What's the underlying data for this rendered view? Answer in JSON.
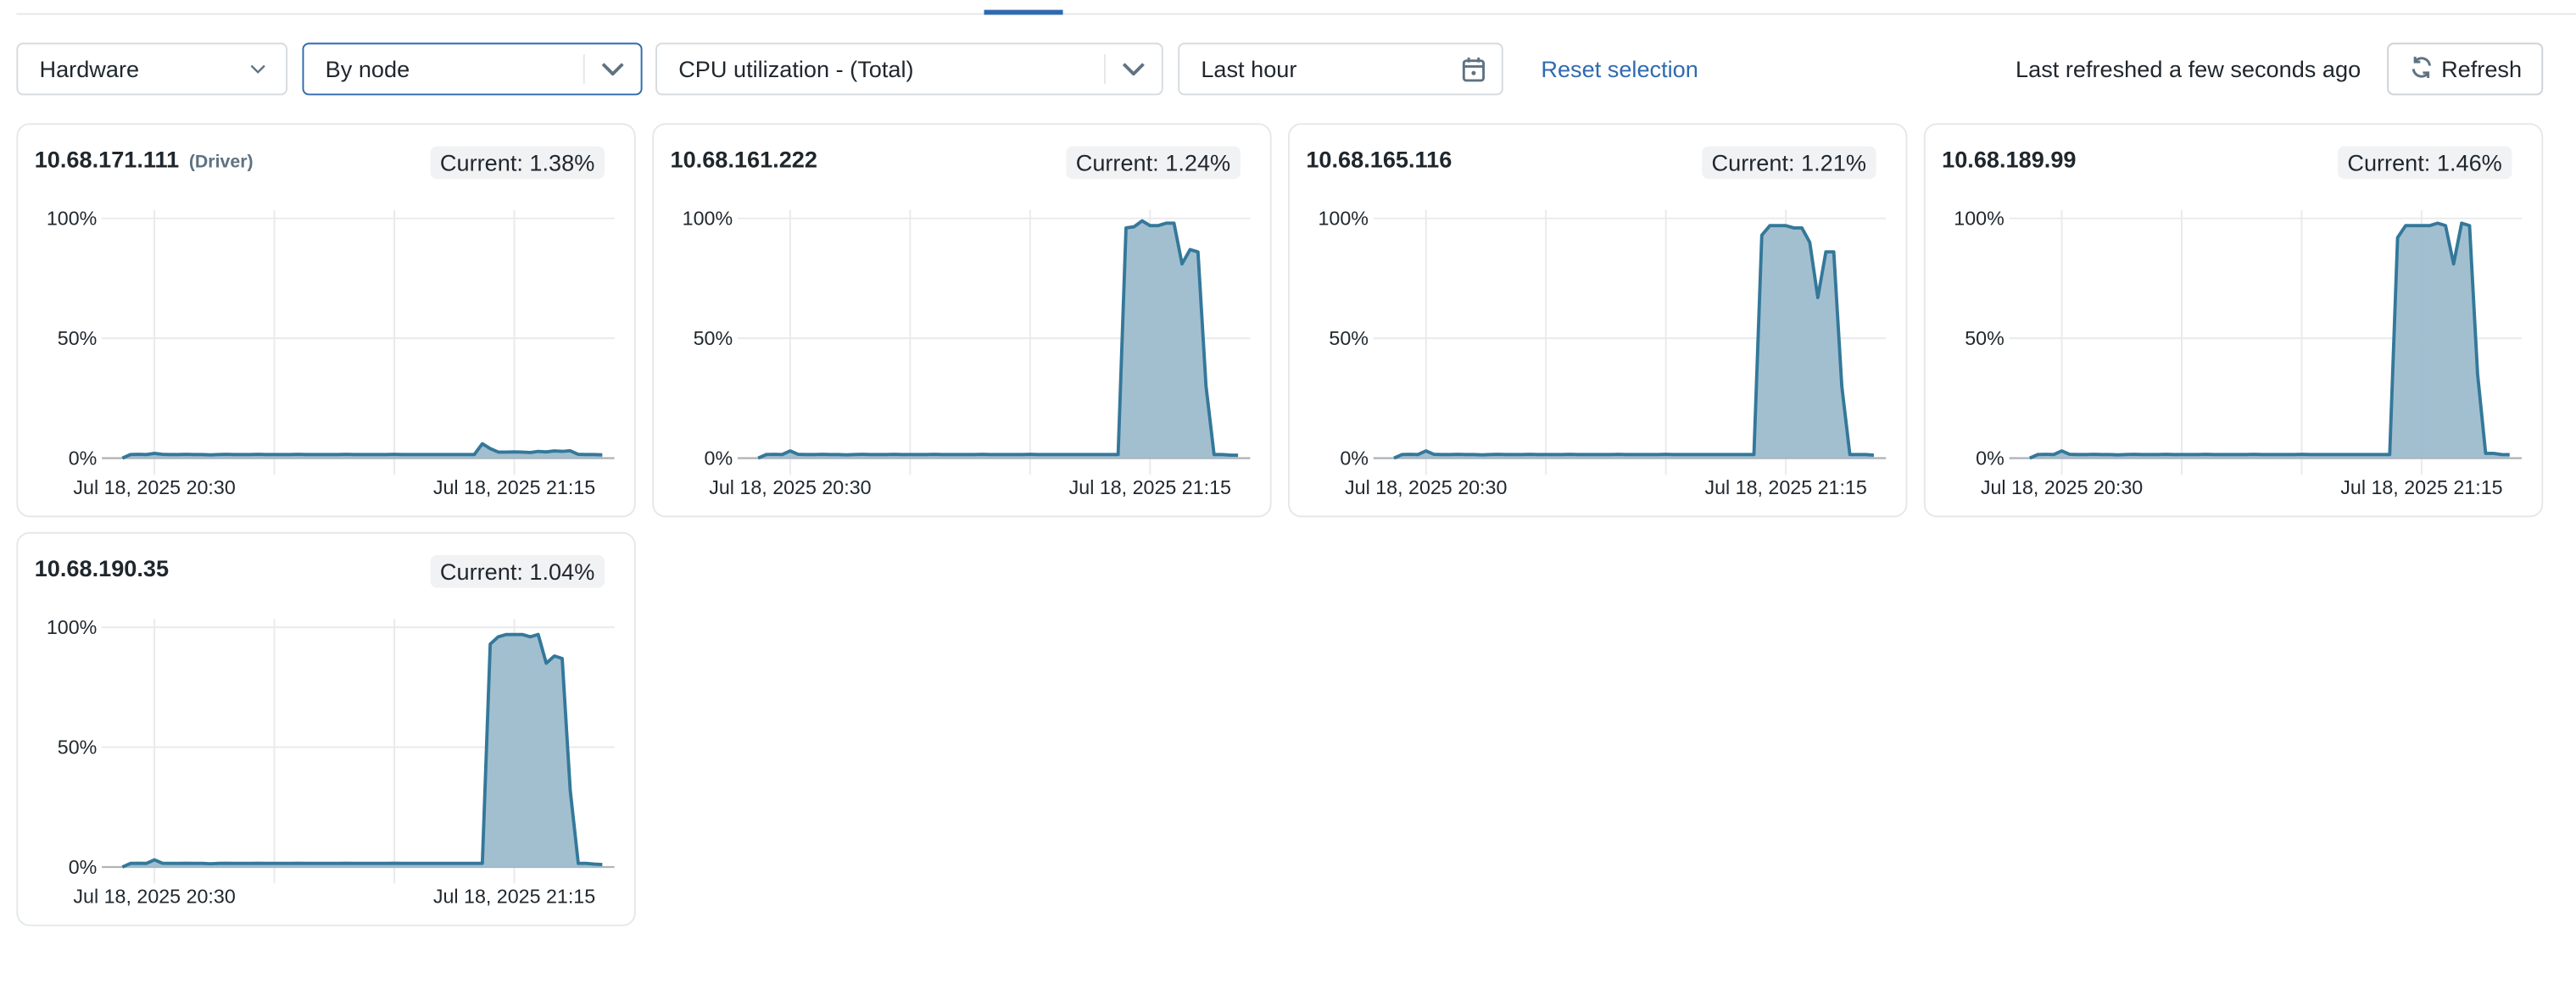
{
  "filters": {
    "category": "Hardware",
    "grouping": "By node",
    "metric": "CPU utilization - (Total)",
    "time_range": "Last hour",
    "reset_label": "Reset selection",
    "last_refreshed": "Last refreshed a few seconds ago",
    "refresh_label": "Refresh"
  },
  "colors": {
    "accent": "#2f6ab0",
    "line": "#34789a",
    "fill": "#9dbccd"
  },
  "cards": [
    {
      "node": "10.68.171.111",
      "tag": "(Driver)",
      "current": "Current: 1.38%"
    },
    {
      "node": "10.68.161.222",
      "current": "Current: 1.24%"
    },
    {
      "node": "10.68.165.116",
      "current": "Current: 1.21%"
    },
    {
      "node": "10.68.189.99",
      "current": "Current: 1.46%"
    },
    {
      "node": "10.68.190.35",
      "current": "Current: 1.04%"
    }
  ],
  "chart_data": [
    {
      "type": "area",
      "series_node": "10.68.171.111",
      "yticks": [
        "0%",
        "50%",
        "100%"
      ],
      "ylim": [
        0,
        100
      ],
      "xticks": [
        "Jul 18, 2025 20:30",
        "Jul 18, 2025 21:15"
      ],
      "grid": true,
      "values": [
        0,
        1.5,
        1.6,
        1.5,
        2,
        1.6,
        1.5,
        1.5,
        1.6,
        1.5,
        1.5,
        1.4,
        1.5,
        1.6,
        1.5,
        1.5,
        1.5,
        1.6,
        1.5,
        1.5,
        1.5,
        1.5,
        1.6,
        1.5,
        1.5,
        1.5,
        1.5,
        1.5,
        1.6,
        1.5,
        1.5,
        1.5,
        1.5,
        1.5,
        1.6,
        1.5,
        1.5,
        1.5,
        1.5,
        1.5,
        1.5,
        1.5,
        1.5,
        1.5,
        1.5,
        6,
        4,
        2.5,
        2.5,
        2.6,
        2.5,
        2.3,
        2.8,
        2.6,
        3,
        2.8,
        3.1,
        1.6,
        1.5,
        1.5,
        1.38
      ]
    },
    {
      "type": "area",
      "series_node": "10.68.161.222",
      "yticks": [
        "0%",
        "50%",
        "100%"
      ],
      "ylim": [
        0,
        100
      ],
      "xticks": [
        "Jul 18, 2025 20:30",
        "Jul 18, 2025 21:15"
      ],
      "grid": true,
      "values": [
        0,
        1.5,
        1.6,
        1.5,
        3,
        1.6,
        1.5,
        1.5,
        1.6,
        1.5,
        1.5,
        1.4,
        1.5,
        1.6,
        1.5,
        1.5,
        1.5,
        1.6,
        1.5,
        1.5,
        1.5,
        1.5,
        1.6,
        1.5,
        1.5,
        1.5,
        1.5,
        1.5,
        1.6,
        1.5,
        1.5,
        1.5,
        1.5,
        1.5,
        1.6,
        1.5,
        1.5,
        1.5,
        1.5,
        1.5,
        1.5,
        1.5,
        1.5,
        1.5,
        1.5,
        1.5,
        96,
        96.5,
        99,
        97,
        97,
        98,
        98,
        81,
        87,
        86,
        30,
        1.5,
        1.5,
        1.3,
        1.24
      ]
    },
    {
      "type": "area",
      "series_node": "10.68.165.116",
      "yticks": [
        "0%",
        "50%",
        "100%"
      ],
      "ylim": [
        0,
        100
      ],
      "xticks": [
        "Jul 18, 2025 20:30",
        "Jul 18, 2025 21:15"
      ],
      "grid": true,
      "values": [
        0,
        1.5,
        1.6,
        1.5,
        3,
        1.6,
        1.5,
        1.5,
        1.6,
        1.5,
        1.5,
        1.4,
        1.5,
        1.6,
        1.5,
        1.5,
        1.5,
        1.6,
        1.5,
        1.5,
        1.5,
        1.5,
        1.6,
        1.5,
        1.5,
        1.5,
        1.5,
        1.5,
        1.6,
        1.5,
        1.5,
        1.5,
        1.5,
        1.5,
        1.6,
        1.5,
        1.5,
        1.5,
        1.5,
        1.5,
        1.5,
        1.5,
        1.5,
        1.5,
        1.5,
        1.5,
        93,
        97,
        97,
        97,
        96,
        96,
        90,
        67,
        86,
        86,
        30,
        1.5,
        1.5,
        1.5,
        1.21
      ]
    },
    {
      "type": "area",
      "series_node": "10.68.189.99",
      "yticks": [
        "0%",
        "50%",
        "100%"
      ],
      "ylim": [
        0,
        100
      ],
      "xticks": [
        "Jul 18, 2025 20:30",
        "Jul 18, 2025 21:15"
      ],
      "grid": true,
      "values": [
        0,
        1.5,
        1.6,
        1.5,
        3,
        1.6,
        1.5,
        1.5,
        1.6,
        1.5,
        1.5,
        1.4,
        1.5,
        1.6,
        1.5,
        1.5,
        1.5,
        1.6,
        1.5,
        1.5,
        1.5,
        1.5,
        1.6,
        1.5,
        1.5,
        1.5,
        1.5,
        1.5,
        1.6,
        1.5,
        1.5,
        1.5,
        1.5,
        1.5,
        1.6,
        1.5,
        1.5,
        1.5,
        1.5,
        1.5,
        1.5,
        1.5,
        1.5,
        1.5,
        1.5,
        1.5,
        92,
        97,
        97,
        97,
        97,
        98,
        97,
        81,
        98,
        97,
        35,
        2,
        2,
        1.5,
        1.46
      ]
    },
    {
      "type": "area",
      "series_node": "10.68.190.35",
      "yticks": [
        "0%",
        "50%",
        "100%"
      ],
      "ylim": [
        0,
        100
      ],
      "xticks": [
        "Jul 18, 2025 20:30",
        "Jul 18, 2025 21:15"
      ],
      "grid": true,
      "values": [
        0,
        1.5,
        1.6,
        1.5,
        3,
        1.6,
        1.5,
        1.5,
        1.6,
        1.5,
        1.5,
        1.4,
        1.5,
        1.6,
        1.5,
        1.5,
        1.5,
        1.6,
        1.5,
        1.5,
        1.5,
        1.5,
        1.6,
        1.5,
        1.5,
        1.5,
        1.5,
        1.5,
        1.6,
        1.5,
        1.5,
        1.5,
        1.5,
        1.5,
        1.6,
        1.5,
        1.5,
        1.5,
        1.5,
        1.5,
        1.5,
        1.5,
        1.5,
        1.5,
        1.5,
        1.5,
        93,
        96,
        97,
        97,
        97,
        96,
        97,
        85,
        88,
        87,
        32,
        1.5,
        1.5,
        1.2,
        1.04
      ]
    }
  ],
  "x": [
    "20:26",
    "20:27",
    "20:28",
    "20:29",
    "20:30",
    "20:31",
    "20:32",
    "20:33",
    "20:34",
    "20:35",
    "20:36",
    "20:37",
    "20:38",
    "20:39",
    "20:40",
    "20:41",
    "20:42",
    "20:43",
    "20:44",
    "20:45",
    "20:46",
    "20:47",
    "20:48",
    "20:49",
    "20:50",
    "20:51",
    "20:52",
    "20:53",
    "20:54",
    "20:55",
    "20:56",
    "20:57",
    "20:58",
    "20:59",
    "21:00",
    "21:01",
    "21:02",
    "21:03",
    "21:04",
    "21:05",
    "21:06",
    "21:07",
    "21:08",
    "21:09",
    "21:10",
    "21:11",
    "21:12",
    "21:13",
    "21:14",
    "21:15",
    "21:16",
    "21:17",
    "21:18",
    "21:19",
    "21:20",
    "21:21",
    "21:22",
    "21:23",
    "21:24",
    "21:25",
    "21:26"
  ]
}
